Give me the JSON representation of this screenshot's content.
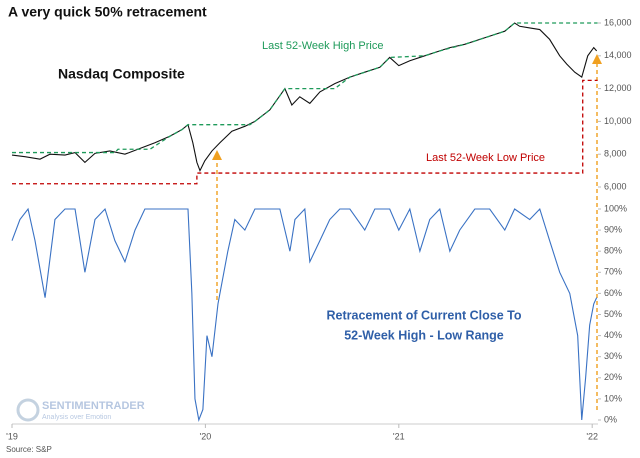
{
  "chart_data": [
    {
      "type": "line",
      "title": "A very quick 50% retracement",
      "subtitle": "Nasdaq Composite",
      "annotations": [
        "Last 52-Week High Price",
        "Last 52-Week Low Price"
      ],
      "xlim": [
        2019,
        2022.03
      ],
      "xticks": [
        {
          "value": 2019,
          "label": "'19"
        },
        {
          "value": 2020,
          "label": "'20"
        },
        {
          "value": 2021,
          "label": "'21"
        },
        {
          "value": 2022,
          "label": "'22"
        }
      ],
      "ylim": [
        6000,
        16000
      ],
      "yticks": [
        {
          "value": 6000,
          "label": "6,000"
        },
        {
          "value": 8000,
          "label": "8,000"
        },
        {
          "value": 10000,
          "label": "10,000"
        },
        {
          "value": 12000,
          "label": "12,000"
        },
        {
          "value": 14000,
          "label": "14,000"
        },
        {
          "value": 16000,
          "label": "16,000"
        }
      ],
      "series": [
        {
          "name": "Nasdaq Composite",
          "color": "#111111",
          "dash": false,
          "x": [
            2019.0,
            2019.067,
            2019.145,
            2019.196,
            2019.274,
            2019.326,
            2019.377,
            2019.429,
            2019.506,
            2019.584,
            2019.661,
            2019.739,
            2019.817,
            2019.879,
            2019.91,
            2019.935,
            2019.956,
            2019.972,
            2019.997,
            2020.034,
            2020.075,
            2020.137,
            2020.204,
            2020.256,
            2020.333,
            2020.411,
            2020.447,
            2020.488,
            2020.54,
            2020.592,
            2020.669,
            2020.747,
            2020.824,
            2020.902,
            2020.953,
            2021.0,
            2021.057,
            2021.134,
            2021.212,
            2021.264,
            2021.341,
            2021.419,
            2021.496,
            2021.548,
            2021.599,
            2021.625,
            2021.677,
            2021.729,
            2021.78,
            2021.832,
            2021.868,
            2021.91,
            2021.946,
            2021.977,
            2022.008,
            2022.023
          ],
          "values": [
            7950,
            7850,
            7700,
            8000,
            7950,
            8100,
            7500,
            8050,
            8200,
            8000,
            8350,
            8700,
            9100,
            9500,
            9800,
            8700,
            7500,
            7000,
            7600,
            8200,
            8700,
            9400,
            9700,
            10000,
            10700,
            12000,
            11000,
            11500,
            11100,
            11800,
            12300,
            12700,
            13000,
            13300,
            13900,
            13400,
            13700,
            14000,
            14300,
            14500,
            14700,
            15000,
            15300,
            15500,
            16000,
            15800,
            15700,
            15600,
            15000,
            14000,
            13500,
            13000,
            12700,
            14000,
            14500,
            14300
          ]
        },
        {
          "name": "Last 52-Week High Price",
          "color": "#1e9a5a",
          "dash": true,
          "x": [
            2019.0,
            2019.532,
            2019.548,
            2019.713,
            2019.765,
            2019.817,
            2019.879,
            2019.91,
            2020.23,
            2020.256,
            2020.333,
            2020.411,
            2020.669,
            2020.747,
            2020.824,
            2020.902,
            2020.953,
            2021.134,
            2021.212,
            2021.341,
            2021.419,
            2021.496,
            2021.548,
            2021.599,
            2022.028
          ],
          "values": [
            8100,
            8100,
            8300,
            8300,
            8700,
            9100,
            9500,
            9800,
            9800,
            10000,
            10700,
            12000,
            12000,
            12700,
            13000,
            13300,
            13900,
            14000,
            14300,
            14700,
            15000,
            15300,
            15500,
            16000,
            16000
          ]
        },
        {
          "name": "Last 52-Week Low Price",
          "color": "#c00000",
          "dash": true,
          "x": [
            2019.0,
            2019.956,
            2019.956,
            2021.951,
            2021.951,
            2022.028
          ],
          "values": [
            6200,
            6200,
            6850,
            6850,
            12500,
            12500
          ]
        }
      ]
    },
    {
      "type": "line",
      "annotations": [
        "Retracement of Current Close To",
        "52-Week High - Low Range"
      ],
      "source": "Source: S&P",
      "logo": [
        "SENTIMENTRADER",
        "Analysis over Emotion"
      ],
      "xlim": [
        2019,
        2022.03
      ],
      "xticks": [
        {
          "value": 2019,
          "label": "'19"
        },
        {
          "value": 2020,
          "label": "'20"
        },
        {
          "value": 2021,
          "label": "'21"
        },
        {
          "value": 2022,
          "label": "'22"
        }
      ],
      "ylim": [
        0,
        100
      ],
      "yticks": [
        {
          "value": 0,
          "label": "0%"
        },
        {
          "value": 10,
          "label": "10%"
        },
        {
          "value": 20,
          "label": "20%"
        },
        {
          "value": 30,
          "label": "30%"
        },
        {
          "value": 40,
          "label": "40%"
        },
        {
          "value": 50,
          "label": "50%"
        },
        {
          "value": 60,
          "label": "60%"
        },
        {
          "value": 70,
          "label": "70%"
        },
        {
          "value": 80,
          "label": "80%"
        },
        {
          "value": 90,
          "label": "90%"
        },
        {
          "value": 100,
          "label": "100%"
        }
      ],
      "series": [
        {
          "name": "Retracement",
          "color": "#3a72c4",
          "dash": false,
          "x": [
            2019.0,
            2019.041,
            2019.083,
            2019.119,
            2019.171,
            2019.222,
            2019.274,
            2019.326,
            2019.377,
            2019.429,
            2019.481,
            2019.532,
            2019.584,
            2019.636,
            2019.687,
            2019.765,
            2019.842,
            2019.91,
            2019.93,
            2019.946,
            2019.966,
            2019.987,
            2020.008,
            2020.034,
            2020.065,
            2020.116,
            2020.152,
            2020.204,
            2020.256,
            2020.307,
            2020.385,
            2020.437,
            2020.463,
            2020.514,
            2020.54,
            2020.592,
            2020.643,
            2020.695,
            2020.747,
            2020.824,
            2020.876,
            2020.953,
            2021.0,
            2021.057,
            2021.109,
            2021.16,
            2021.212,
            2021.264,
            2021.315,
            2021.393,
            2021.47,
            2021.548,
            2021.599,
            2021.677,
            2021.729,
            2021.78,
            2021.832,
            2021.884,
            2021.925,
            2021.946,
            2021.966,
            2021.987,
            2022.008,
            2022.023
          ],
          "values": [
            85,
            95,
            100,
            85,
            58,
            95,
            100,
            100,
            70,
            95,
            100,
            85,
            75,
            90,
            100,
            100,
            100,
            100,
            60,
            10,
            0,
            5,
            40,
            30,
            55,
            80,
            95,
            90,
            100,
            100,
            100,
            80,
            95,
            100,
            75,
            85,
            95,
            100,
            100,
            90,
            100,
            100,
            90,
            100,
            80,
            95,
            100,
            80,
            90,
            100,
            100,
            90,
            100,
            95,
            100,
            85,
            70,
            60,
            40,
            0,
            20,
            45,
            55,
            58
          ]
        }
      ]
    }
  ]
}
